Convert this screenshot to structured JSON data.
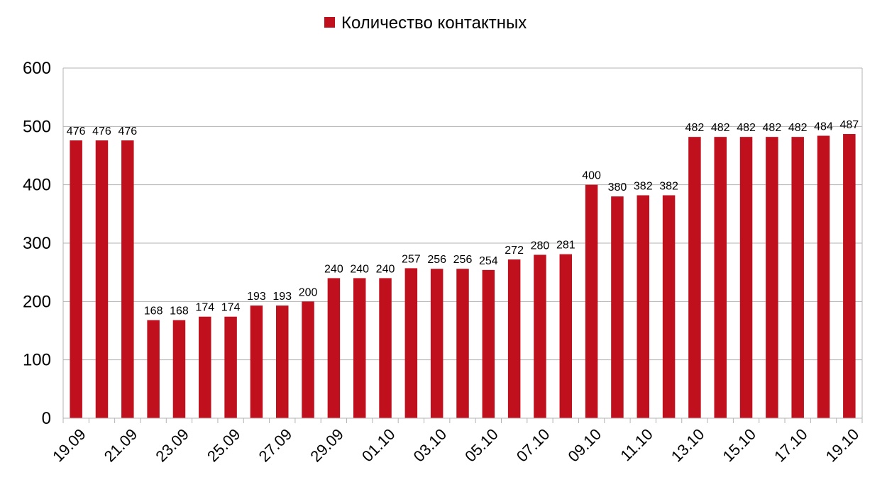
{
  "chart_data": {
    "type": "bar",
    "categories": [
      "19.09",
      "20.09",
      "21.09",
      "22.09",
      "23.09",
      "24.09",
      "25.09",
      "26.09",
      "27.09",
      "28.09",
      "29.09",
      "30.09",
      "01.10",
      "02.10",
      "03.10",
      "04.10",
      "05.10",
      "06.10",
      "07.10",
      "08.10",
      "09.10",
      "10.10",
      "11.10",
      "12.10",
      "13.10",
      "14.10",
      "15.10",
      "16.10",
      "17.10",
      "18.10",
      "19.10"
    ],
    "tick_labels_shown": [
      "19.09",
      "21.09",
      "23.09",
      "25.09",
      "27.09",
      "29.09",
      "01.10",
      "03.10",
      "05.10",
      "07.10",
      "09.10",
      "11.10",
      "13.10",
      "15.10",
      "17.10",
      "19.10"
    ],
    "series": [
      {
        "name": "Количество контактных",
        "color": "#c0101e",
        "values": [
          476,
          476,
          476,
          168,
          168,
          174,
          174,
          193,
          193,
          200,
          240,
          240,
          240,
          257,
          256,
          256,
          254,
          272,
          280,
          281,
          400,
          380,
          382,
          382,
          482,
          482,
          482,
          482,
          482,
          484,
          487
        ]
      }
    ],
    "ylim": [
      0,
      600
    ],
    "yticks": [
      0,
      100,
      200,
      300,
      400,
      500,
      600
    ],
    "grid": true,
    "legend": "top-center",
    "title": "",
    "xlabel": "",
    "ylabel": ""
  }
}
